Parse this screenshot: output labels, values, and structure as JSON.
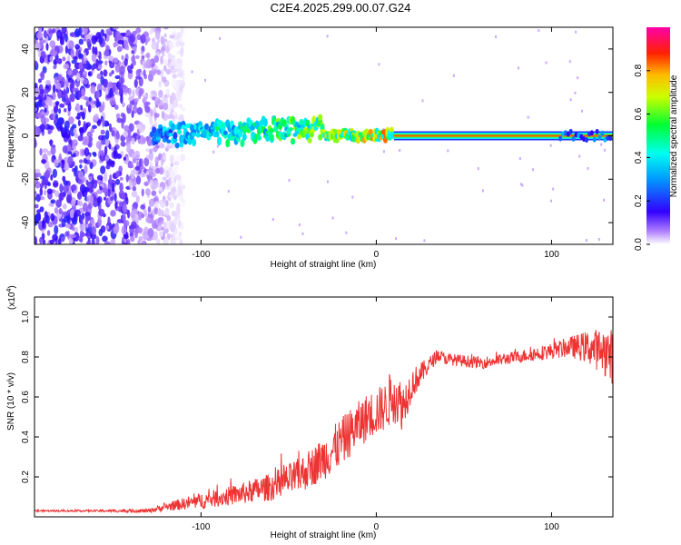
{
  "title": "C2E4.2025.299.00.07.G24",
  "colors": {
    "snr_line": "#ee3333",
    "frame": "#000000",
    "grid_tick": "#000000"
  },
  "chart_data": [
    {
      "type": "heatmap",
      "name": "spectrogram",
      "xlabel": "Height of straight line (km)",
      "ylabel": "Frequency (Hz)",
      "xlim": [
        -195,
        135
      ],
      "ylim": [
        -50,
        50
      ],
      "xticks": [
        -100,
        0,
        100
      ],
      "xtick_labels": [
        "-100",
        "0",
        "100"
      ],
      "yticks": [
        -40,
        -20,
        0,
        20,
        40
      ],
      "ytick_labels": [
        "-40",
        "-20",
        "0",
        "20",
        "40"
      ],
      "colorbar": {
        "label": "Normalized spectral amplitude",
        "range": [
          0,
          1
        ],
        "ticks": [
          0.0,
          0.2,
          0.4,
          0.6,
          0.8
        ],
        "tick_labels": [
          "0.0",
          "0.2",
          "0.4",
          "0.6",
          "0.8"
        ],
        "colormap": "rainbow (white-violet-blue-cyan-green-yellow-red-magenta)"
      },
      "features": {
        "noise_region_x": [
          -195,
          -110
        ],
        "signal_onset_x": -128,
        "tone_frequency_hz": 0,
        "tone_solid_from_x": 10
      }
    },
    {
      "type": "line",
      "name": "snr",
      "xlabel": "Height of straight line (km)",
      "ylabel": "SNR (10 * v/v)",
      "scale_label": "(x10",
      "scale_exponent": "4",
      "xlim": [
        -195,
        135
      ],
      "ylim": [
        0,
        1.1
      ],
      "xticks": [
        -100,
        0,
        100
      ],
      "xtick_labels": [
        "-100",
        "0",
        "100"
      ],
      "yticks": [
        0.2,
        0.4,
        0.6,
        0.8,
        1.0
      ],
      "ytick_labels": [
        "0.2",
        "0.4",
        "0.6",
        "0.8",
        "1.0"
      ],
      "series": [
        {
          "name": "SNR",
          "x": [
            -195,
            -160,
            -130,
            -120,
            -100,
            -80,
            -60,
            -45,
            -35,
            -25,
            -15,
            -5,
            5,
            10,
            15,
            20,
            30,
            35,
            40,
            60,
            80,
            100,
            110,
            120,
            130,
            135
          ],
          "y": [
            0.03,
            0.03,
            0.03,
            0.05,
            0.08,
            0.11,
            0.15,
            0.2,
            0.26,
            0.33,
            0.42,
            0.5,
            0.55,
            0.62,
            0.55,
            0.66,
            0.76,
            0.81,
            0.79,
            0.77,
            0.8,
            0.83,
            0.85,
            0.85,
            0.83,
            0.8
          ],
          "noise_amplitude": [
            0.005,
            0.005,
            0.01,
            0.02,
            0.04,
            0.05,
            0.07,
            0.09,
            0.1,
            0.12,
            0.12,
            0.12,
            0.12,
            0.15,
            0.12,
            0.08,
            0.04,
            0.03,
            0.03,
            0.03,
            0.03,
            0.04,
            0.05,
            0.08,
            0.12,
            0.14
          ]
        }
      ]
    }
  ]
}
